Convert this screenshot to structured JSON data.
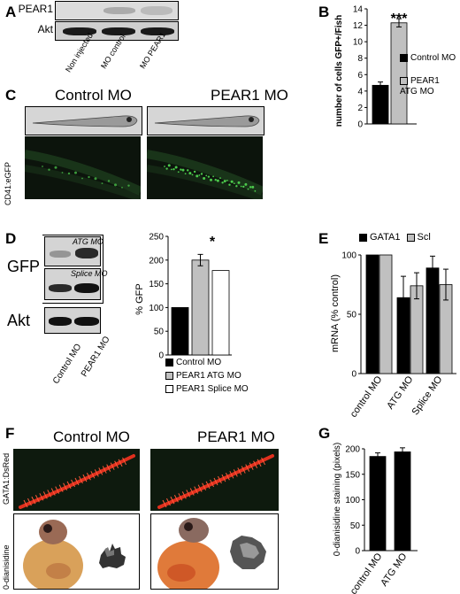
{
  "panels": {
    "A": {
      "letter": "A",
      "rows": [
        "PEAR1",
        "Akt"
      ],
      "lanes": [
        "Non injected",
        "MO control",
        "MO PEAR1"
      ]
    },
    "B": {
      "letter": "B",
      "ylabel": "number of cells GFP+/Fish",
      "stars": "***",
      "legend": [
        "Control MO",
        "PEAR1\nATG MO"
      ]
    },
    "C": {
      "letter": "C",
      "titles": [
        "Control MO",
        "PEAR1 MO"
      ],
      "side_label": "CD41:eGFP"
    },
    "D": {
      "letter": "D",
      "blot_labels": [
        "GFP",
        "Akt"
      ],
      "inner_labels": [
        "ATG MO",
        "Splice MO"
      ],
      "lanes": [
        "Control MO",
        "PEAR1 MO"
      ],
      "ylabel": "% GFP",
      "star": "*",
      "legend": [
        "Control MO",
        "PEAR1 ATG MO",
        "PEAR1 Splice MO"
      ]
    },
    "E": {
      "letter": "E",
      "ylabel": "mRNA  (% control)",
      "legend": [
        "GATA1",
        "Scl"
      ]
    },
    "F": {
      "letter": "F",
      "titles": [
        "Control MO",
        "PEAR1 MO"
      ],
      "side_labels": [
        "GATA1:DsRed",
        "0-dianisidine"
      ]
    },
    "G": {
      "letter": "G",
      "ylabel": "0-dianisidine staining (pixels)"
    }
  },
  "colors": {
    "black": "#000000",
    "gray": "#c0c0c0",
    "white": "#ffffff",
    "fluor_green": "#4fd24f",
    "dsred": "#e0301e"
  },
  "chart_data": [
    {
      "panel": "B",
      "type": "bar",
      "categories": [
        "Control MO",
        "PEAR1 ATG MO"
      ],
      "values": [
        4.7,
        12.3
      ],
      "errors": [
        0.4,
        0.5
      ],
      "ylim": [
        0,
        14
      ],
      "yticks": [
        0,
        2,
        4,
        6,
        8,
        10,
        12,
        14
      ]
    },
    {
      "panel": "D",
      "type": "bar",
      "categories": [
        "Control MO",
        "PEAR1 ATG MO",
        "PEAR1 Splice MO"
      ],
      "values": [
        100,
        200,
        178
      ],
      "errors": [
        0,
        12,
        0
      ],
      "ylim": [
        0,
        250
      ],
      "yticks": [
        0,
        50,
        100,
        150,
        200,
        250
      ]
    },
    {
      "panel": "E",
      "type": "bar",
      "categories": [
        "control MO",
        "ATG MO",
        "Splice MO"
      ],
      "series": [
        {
          "name": "GATA1",
          "values": [
            100,
            64,
            89
          ],
          "errors": [
            0,
            18,
            10
          ]
        },
        {
          "name": "Scl",
          "values": [
            100,
            74,
            75
          ],
          "errors": [
            0,
            11,
            13
          ]
        }
      ],
      "ylim": [
        0,
        100
      ],
      "yticks": [
        0,
        50,
        100
      ]
    },
    {
      "panel": "G",
      "type": "bar",
      "categories": [
        "control MO",
        "ATG MO"
      ],
      "values": [
        185,
        194
      ],
      "errors": [
        7,
        8
      ],
      "ylim": [
        0,
        200
      ],
      "yticks": [
        0,
        50,
        100,
        150,
        200
      ]
    }
  ]
}
